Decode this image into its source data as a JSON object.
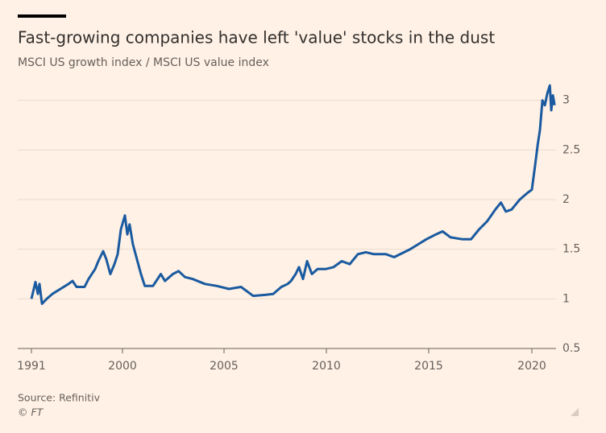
{
  "chart_data": {
    "type": "line",
    "title": "Fast-growing companies have left 'value' stocks in the dust",
    "subtitle": "MSCI US growth index / MSCI US value index",
    "source": "Source: Refinitiv",
    "credit": "© FT",
    "x": [
      1991.0,
      1991.4,
      1991.64,
      1991.8,
      1992.04,
      1992.51,
      1993.07,
      1993.87,
      1994.66,
      1995.06,
      1995.46,
      1996.25,
      1996.65,
      1997.29,
      1997.61,
      1998.09,
      1998.4,
      1998.8,
      1999.2,
      1999.52,
      1999.84,
      2000.12,
      2000.24,
      2000.35,
      2000.51,
      2000.71,
      2000.91,
      2001.1,
      2001.5,
      2001.89,
      2002.09,
      2002.48,
      2002.76,
      2003.07,
      2003.46,
      2004.06,
      2004.65,
      2005.24,
      2005.83,
      2006.42,
      2007.01,
      2007.4,
      2007.8,
      2008.11,
      2008.27,
      2008.5,
      2008.66,
      2008.86,
      2009.06,
      2009.29,
      2009.57,
      2009.96,
      2010.35,
      2010.75,
      2011.14,
      2011.54,
      2011.93,
      2012.32,
      2012.91,
      2013.31,
      2013.7,
      2014.09,
      2014.49,
      2014.88,
      2015.35,
      2015.67,
      2016.06,
      2016.65,
      2017.05,
      2017.44,
      2017.83,
      2018.23,
      2018.5,
      2018.74,
      2019.02,
      2019.41,
      2019.8,
      2020.0,
      2020.16,
      2020.28,
      2020.39,
      2020.51,
      2020.63,
      2020.75,
      2020.87,
      2020.94,
      2021.02,
      2021.1
    ],
    "series": [
      {
        "name": "MSCI US growth index / MSCI US value index",
        "color": "#1a5aa0",
        "values": [
          1.0,
          1.17,
          1.05,
          1.15,
          0.95,
          1.0,
          1.05,
          1.1,
          1.15,
          1.18,
          1.12,
          1.12,
          1.2,
          1.3,
          1.38,
          1.48,
          1.4,
          1.25,
          1.35,
          1.45,
          1.7,
          1.84,
          1.65,
          1.75,
          1.55,
          1.4,
          1.25,
          1.13,
          1.13,
          1.25,
          1.18,
          1.25,
          1.28,
          1.22,
          1.2,
          1.15,
          1.13,
          1.1,
          1.12,
          1.03,
          1.04,
          1.05,
          1.12,
          1.15,
          1.18,
          1.25,
          1.32,
          1.2,
          1.38,
          1.25,
          1.3,
          1.3,
          1.32,
          1.38,
          1.35,
          1.45,
          1.47,
          1.45,
          1.45,
          1.42,
          1.46,
          1.5,
          1.55,
          1.6,
          1.65,
          1.68,
          1.62,
          1.6,
          1.6,
          1.7,
          1.78,
          1.9,
          1.97,
          1.88,
          1.9,
          2.0,
          2.07,
          2.1,
          2.35,
          2.55,
          2.7,
          3.0,
          2.95,
          3.07,
          3.15,
          2.9,
          3.05,
          2.95
        ]
      }
    ],
    "xlim": [
      1991,
      2021.1
    ],
    "xticks": [
      1991,
      2000,
      2005,
      2010,
      2015,
      2020
    ],
    "ylim": [
      0.5,
      3.2
    ],
    "yticks": [
      0.5,
      1.0,
      1.5,
      2.0,
      2.5,
      3.0
    ],
    "grid": true
  }
}
